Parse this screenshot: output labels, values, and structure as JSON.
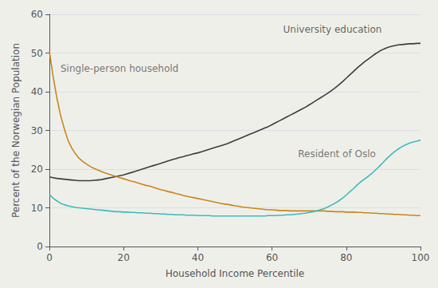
{
  "chart_data": {
    "type": "line",
    "xlabel": "Household Income Percentile",
    "ylabel": "Percent of the Norwegian Population",
    "xlim": [
      0,
      100
    ],
    "ylim": [
      0,
      60
    ],
    "xticks": [
      0,
      20,
      40,
      60,
      80,
      100
    ],
    "yticks": [
      0,
      10,
      20,
      30,
      40,
      50,
      60
    ],
    "grid": true,
    "x": [
      0,
      1,
      2,
      3,
      4,
      5,
      6,
      7,
      8,
      9,
      10,
      11,
      12,
      13,
      14,
      15,
      16,
      17,
      18,
      19,
      20,
      21,
      22,
      23,
      24,
      25,
      26,
      27,
      28,
      29,
      30,
      31,
      32,
      33,
      34,
      35,
      36,
      37,
      38,
      39,
      40,
      41,
      42,
      43,
      44,
      45,
      46,
      47,
      48,
      49,
      50,
      51,
      52,
      53,
      54,
      55,
      56,
      57,
      58,
      59,
      60,
      61,
      62,
      63,
      64,
      65,
      66,
      67,
      68,
      69,
      70,
      71,
      72,
      73,
      74,
      75,
      76,
      77,
      78,
      79,
      80,
      81,
      82,
      83,
      84,
      85,
      86,
      87,
      88,
      89,
      90,
      91,
      92,
      93,
      94,
      95,
      96,
      97,
      98,
      99,
      100
    ],
    "series": [
      {
        "name": "University education",
        "color": "#3d3d3a",
        "values": [
          18.0,
          17.8,
          17.6,
          17.5,
          17.4,
          17.3,
          17.2,
          17.1,
          17.0,
          17.0,
          17.0,
          17.0,
          17.1,
          17.2,
          17.3,
          17.5,
          17.7,
          17.9,
          18.1,
          18.3,
          18.5,
          18.8,
          19.1,
          19.4,
          19.7,
          20.0,
          20.3,
          20.6,
          20.9,
          21.2,
          21.5,
          21.8,
          22.1,
          22.4,
          22.7,
          23.0,
          23.2,
          23.5,
          23.7,
          24.0,
          24.2,
          24.5,
          24.8,
          25.1,
          25.4,
          25.7,
          26.0,
          26.3,
          26.6,
          27.0,
          27.4,
          27.8,
          28.2,
          28.6,
          29.0,
          29.4,
          29.8,
          30.2,
          30.6,
          31.0,
          31.5,
          32.0,
          32.5,
          33.0,
          33.5,
          34.0,
          34.5,
          35.0,
          35.5,
          36.0,
          36.6,
          37.2,
          37.8,
          38.4,
          39.0,
          39.6,
          40.3,
          41.0,
          41.8,
          42.6,
          43.5,
          44.4,
          45.3,
          46.2,
          47.0,
          47.8,
          48.5,
          49.2,
          49.9,
          50.5,
          51.0,
          51.4,
          51.7,
          51.9,
          52.1,
          52.2,
          52.3,
          52.4,
          52.4,
          52.5,
          52.5
        ]
      },
      {
        "name": "Single-person household",
        "color": "#c8871a",
        "values": [
          50.5,
          44.0,
          38.5,
          34.0,
          30.5,
          27.5,
          25.5,
          24.0,
          22.8,
          22.0,
          21.3,
          20.7,
          20.2,
          19.8,
          19.4,
          19.0,
          18.7,
          18.4,
          18.1,
          17.8,
          17.5,
          17.2,
          16.9,
          16.7,
          16.4,
          16.1,
          15.8,
          15.6,
          15.3,
          15.0,
          14.7,
          14.5,
          14.2,
          14.0,
          13.7,
          13.5,
          13.2,
          13.0,
          12.8,
          12.6,
          12.4,
          12.2,
          12.0,
          11.8,
          11.6,
          11.4,
          11.2,
          11.0,
          10.9,
          10.7,
          10.5,
          10.4,
          10.2,
          10.1,
          10.0,
          9.9,
          9.8,
          9.7,
          9.6,
          9.5,
          9.5,
          9.4,
          9.3,
          9.3,
          9.3,
          9.2,
          9.2,
          9.2,
          9.2,
          9.2,
          9.2,
          9.2,
          9.2,
          9.2,
          9.2,
          9.1,
          9.1,
          9.0,
          9.0,
          9.0,
          8.9,
          8.9,
          8.9,
          8.8,
          8.8,
          8.7,
          8.7,
          8.6,
          8.6,
          8.5,
          8.5,
          8.4,
          8.4,
          8.3,
          8.3,
          8.2,
          8.2,
          8.1,
          8.1,
          8.0,
          8.0
        ]
      },
      {
        "name": "Resident of Oslo",
        "color": "#3bbcbc",
        "values": [
          13.5,
          12.5,
          11.8,
          11.2,
          10.8,
          10.5,
          10.3,
          10.1,
          10.0,
          9.9,
          9.8,
          9.7,
          9.6,
          9.5,
          9.4,
          9.3,
          9.2,
          9.1,
          9.0,
          9.0,
          8.9,
          8.9,
          8.8,
          8.8,
          8.7,
          8.7,
          8.6,
          8.6,
          8.5,
          8.5,
          8.4,
          8.4,
          8.3,
          8.3,
          8.2,
          8.2,
          8.2,
          8.1,
          8.1,
          8.1,
          8.0,
          8.0,
          8.0,
          8.0,
          7.9,
          7.9,
          7.9,
          7.9,
          7.9,
          7.9,
          7.9,
          7.9,
          7.9,
          7.9,
          7.9,
          7.9,
          7.9,
          7.9,
          7.9,
          8.0,
          8.0,
          8.0,
          8.1,
          8.1,
          8.2,
          8.2,
          8.3,
          8.4,
          8.5,
          8.6,
          8.8,
          9.0,
          9.2,
          9.5,
          9.8,
          10.2,
          10.7,
          11.2,
          11.8,
          12.5,
          13.3,
          14.2,
          15.0,
          16.0,
          16.8,
          17.5,
          18.2,
          19.0,
          19.9,
          20.8,
          21.8,
          22.8,
          23.7,
          24.5,
          25.2,
          25.8,
          26.3,
          26.7,
          27.0,
          27.2,
          27.5
        ]
      }
    ],
    "annotations": [
      {
        "text": "University education",
        "x": 63,
        "y": 56,
        "color": "#3d3d3a"
      },
      {
        "text": "Single-person household",
        "x": 3,
        "y": 46,
        "color": "#555555"
      },
      {
        "text": "Resident of Oslo",
        "x": 67,
        "y": 24,
        "color": "#555555"
      }
    ]
  }
}
